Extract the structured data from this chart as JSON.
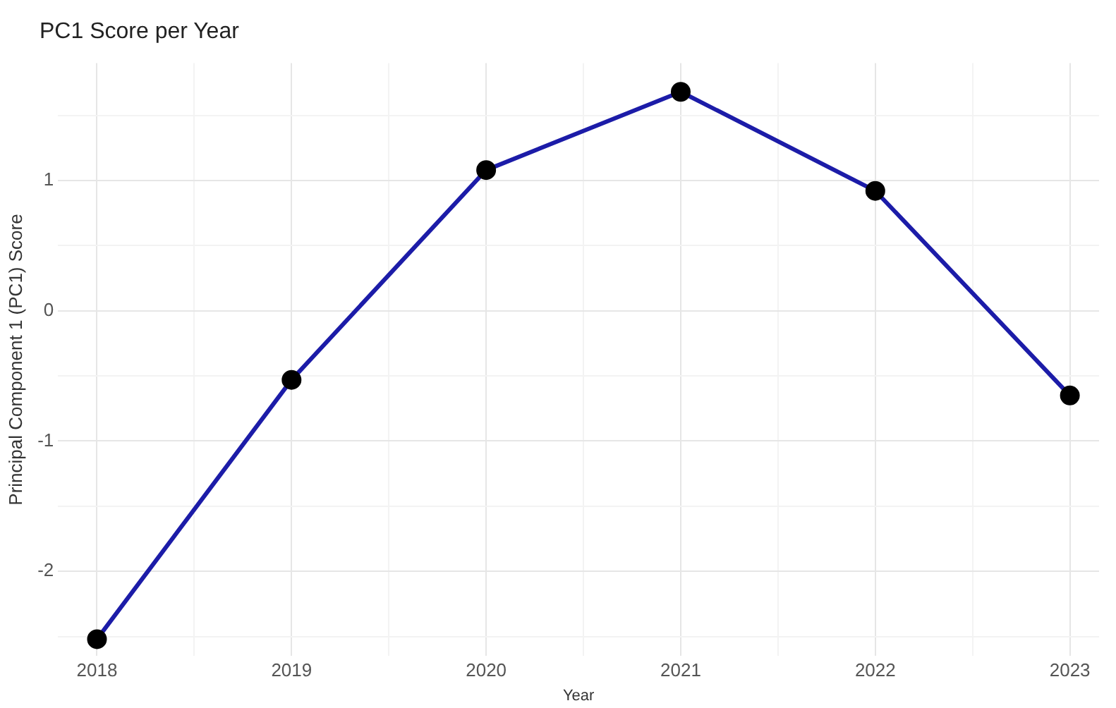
{
  "chart_data": {
    "type": "line",
    "title": "PC1 Score per Year",
    "xlabel": "Year",
    "ylabel": "Principal Component 1 (PC1) Score",
    "x": [
      2018,
      2019,
      2020,
      2021,
      2022,
      2023
    ],
    "series": [
      {
        "color": "#1c1ca8",
        "values": [
          -2.52,
          -0.53,
          1.08,
          1.68,
          0.92,
          -0.65
        ]
      }
    ],
    "xlim": [
      2017.8,
      2023.15
    ],
    "xticks": [
      2018,
      {
        "value": 2018.5,
        "label": null
      },
      2019,
      {
        "value": 2019.5,
        "label": null
      },
      2020,
      {
        "value": 2020.5,
        "label": null
      },
      2021,
      {
        "value": 2021.5,
        "label": null
      },
      2022,
      {
        "value": 2022.5,
        "label": null
      },
      2023
    ],
    "ylim": [
      -2.65,
      1.9
    ],
    "yticks": [
      {
        "value": -2.5,
        "label": null
      },
      -2,
      {
        "value": -1.5,
        "label": null
      },
      -1,
      {
        "value": -0.5,
        "label": null
      },
      0,
      {
        "value": 0.5,
        "label": null
      },
      1,
      {
        "value": 1.5,
        "label": null
      }
    ],
    "grid": true,
    "legend": false,
    "marker": "circle",
    "line_style": "solid"
  }
}
